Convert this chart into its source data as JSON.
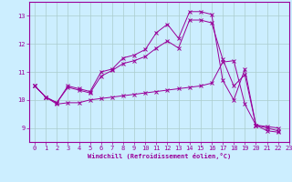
{
  "xlabel": "Windchill (Refroidissement éolien,°C)",
  "bg_color": "#cceeff",
  "line_color": "#990099",
  "grid_color": "#aacccc",
  "xlim": [
    -0.5,
    23
  ],
  "ylim": [
    8.5,
    13.5
  ],
  "xticks": [
    0,
    1,
    2,
    3,
    4,
    5,
    6,
    7,
    8,
    9,
    10,
    11,
    12,
    13,
    14,
    15,
    16,
    17,
    18,
    19,
    20,
    21,
    22,
    23
  ],
  "yticks": [
    9,
    10,
    11,
    12,
    13
  ],
  "series1_x": [
    0,
    1,
    2,
    3,
    4,
    5,
    6,
    7,
    8,
    9,
    10,
    11,
    12,
    13,
    14,
    15,
    16,
    17,
    18,
    19,
    20,
    21,
    22
  ],
  "series1_y": [
    10.5,
    10.1,
    9.9,
    10.5,
    10.4,
    10.3,
    11.0,
    11.1,
    11.5,
    11.6,
    11.8,
    12.4,
    12.7,
    12.2,
    13.15,
    13.15,
    13.05,
    10.7,
    10.0,
    11.1,
    9.1,
    8.9,
    8.85
  ],
  "series2_x": [
    0,
    1,
    2,
    3,
    4,
    5,
    6,
    7,
    8,
    9,
    10,
    11,
    12,
    13,
    14,
    15,
    16,
    17,
    18,
    19,
    20,
    21,
    22
  ],
  "series2_y": [
    10.5,
    10.1,
    9.9,
    10.45,
    10.35,
    10.25,
    10.85,
    11.05,
    11.3,
    11.4,
    11.55,
    11.85,
    12.1,
    11.85,
    12.85,
    12.85,
    12.75,
    11.45,
    10.5,
    10.9,
    9.1,
    9.05,
    9.0
  ],
  "series3_x": [
    0,
    1,
    2,
    3,
    4,
    5,
    6,
    7,
    8,
    9,
    10,
    11,
    12,
    13,
    14,
    15,
    16,
    17,
    18,
    19,
    20,
    21,
    22
  ],
  "series3_y": [
    10.5,
    10.1,
    9.85,
    9.9,
    9.9,
    10.0,
    10.05,
    10.1,
    10.15,
    10.2,
    10.25,
    10.3,
    10.35,
    10.4,
    10.45,
    10.5,
    10.6,
    11.35,
    11.4,
    9.85,
    9.1,
    9.0,
    8.9
  ]
}
